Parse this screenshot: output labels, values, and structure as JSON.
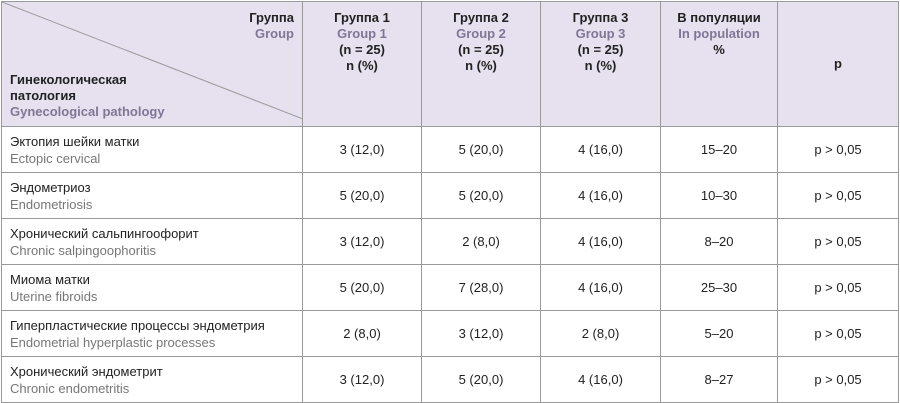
{
  "header": {
    "group_ru": "Группа",
    "group_en": "Group",
    "pathology_ru": "Гинекологическая патология",
    "pathology_en": "Gynecological pathology",
    "columns": [
      {
        "ru": "Группа 1",
        "en": "Group 1",
        "n": "(n = 25)",
        "unit": "n (%)"
      },
      {
        "ru": "Группа 2",
        "en": "Group 2",
        "n": "(n = 25)",
        "unit": "n (%)"
      },
      {
        "ru": "Группа 3",
        "en": "Group 3",
        "n": "(n = 25)",
        "unit": "n (%)"
      },
      {
        "ru": "В популяции",
        "en": "In population",
        "unit": "%"
      },
      {
        "ru": "p"
      }
    ]
  },
  "rows": [
    {
      "ru": "Эктопия шейки матки",
      "en": "Ectopic cervical",
      "cells": [
        "3 (12,0)",
        "5 (20,0)",
        "4 (16,0)",
        "15–20",
        "p > 0,05"
      ]
    },
    {
      "ru": "Эндометриоз",
      "en": "Endometriosis",
      "cells": [
        "5 (20,0)",
        "5 (20,0)",
        "4 (16,0)",
        "10–30",
        "p > 0,05"
      ]
    },
    {
      "ru": "Хронический сальпингоофорит",
      "en": "Chronic salpingoophoritis",
      "cells": [
        "3 (12,0)",
        "2 (8,0)",
        "4 (16,0)",
        "8–20",
        "p > 0,05"
      ]
    },
    {
      "ru": "Миома матки",
      "en": "Uterine fibroids",
      "cells": [
        "5 (20,0)",
        "7 (28,0)",
        "4 (16,0)",
        "25–30",
        "p > 0,05"
      ]
    },
    {
      "ru": "Гиперпластические процессы эндометрия",
      "en": "Endometrial hyperplastic processes",
      "cells": [
        "2 (8,0)",
        "3 (12,0)",
        "2 (8,0)",
        "5–20",
        "p > 0,05"
      ]
    },
    {
      "ru": "Хронический эндометрит",
      "en": "Chronic endometritis",
      "cells": [
        "3 (12,0)",
        "5 (20,0)",
        "4 (16,0)",
        "8–27",
        "p > 0,05"
      ]
    }
  ]
}
